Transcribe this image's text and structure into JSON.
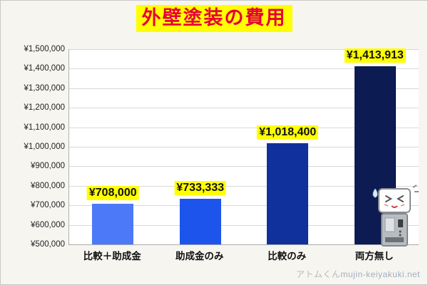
{
  "page": {
    "background": "#f7f5f0",
    "watermark_left": "アトムくん",
    "watermark_right": "mujin-keiyakuki.net"
  },
  "title": {
    "text": "外壁塗装の費用",
    "color": "#e60039",
    "highlight": "#ffff00"
  },
  "chart_data": {
    "type": "bar",
    "title": "外壁塗装の費用",
    "categories": [
      "比較＋助成金",
      "助成金のみ",
      "比較のみ",
      "両方無し"
    ],
    "values": [
      708000,
      733333,
      1018400,
      1413913
    ],
    "value_labels": [
      "¥708,000",
      "¥733,333",
      "¥1,018,400",
      "¥1,413,913"
    ],
    "bar_colors": [
      "#4b79f8",
      "#1d55ec",
      "#10309c",
      "#0c1b52"
    ],
    "xlabel": "",
    "ylabel": "",
    "ylim": [
      500000,
      1500000
    ],
    "ytick_step": 100000,
    "ytick_labels": [
      "¥500,000",
      "¥600,000",
      "¥700,000",
      "¥800,000",
      "¥900,000",
      "¥1,000,000",
      "¥1,100,000",
      "¥1,200,000",
      "¥1,300,000",
      "¥1,400,000",
      "¥1,500,000"
    ],
    "grid": true,
    "legend": "none",
    "label_highlight": "#ffff00"
  },
  "mascot": {
    "name": "atom-kun-robot"
  }
}
